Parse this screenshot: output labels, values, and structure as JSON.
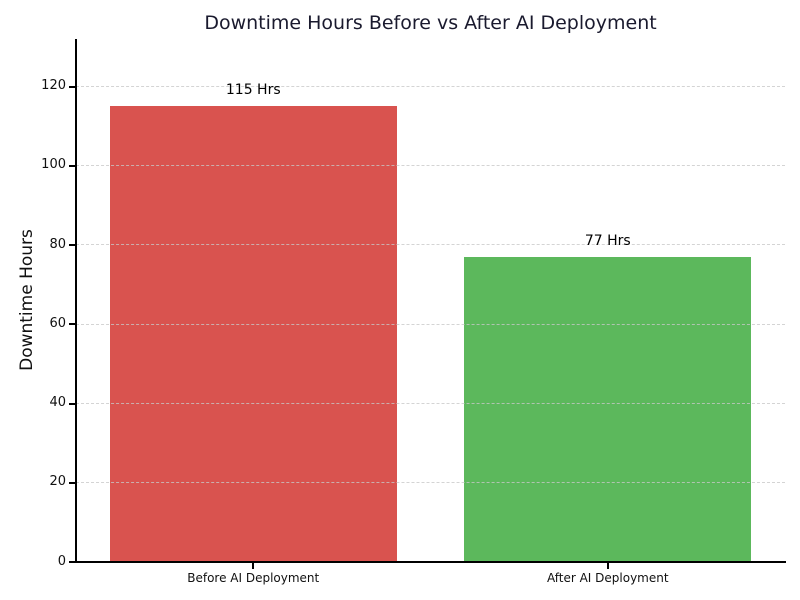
{
  "chart_data": {
    "type": "bar",
    "title": "Downtime Hours Before vs After AI Deployment",
    "categories": [
      "Before AI Deployment",
      "After AI Deployment"
    ],
    "values": [
      115,
      77
    ],
    "bar_labels": [
      "115 Hrs",
      "77 Hrs"
    ],
    "bar_colors": [
      "#d9534f",
      "#5cb85c"
    ],
    "xlabel": "",
    "ylabel": "Downtime Hours",
    "ylim": [
      0,
      132
    ],
    "yticks": [
      0,
      20,
      40,
      60,
      80,
      100,
      120
    ],
    "grid": "horizontal dashed, drawn over bars",
    "legend": "none",
    "colors": {
      "title": "#1a1a2e",
      "axis": "#000000",
      "gridline": "#c8c8c8",
      "background": "#ffffff"
    }
  }
}
